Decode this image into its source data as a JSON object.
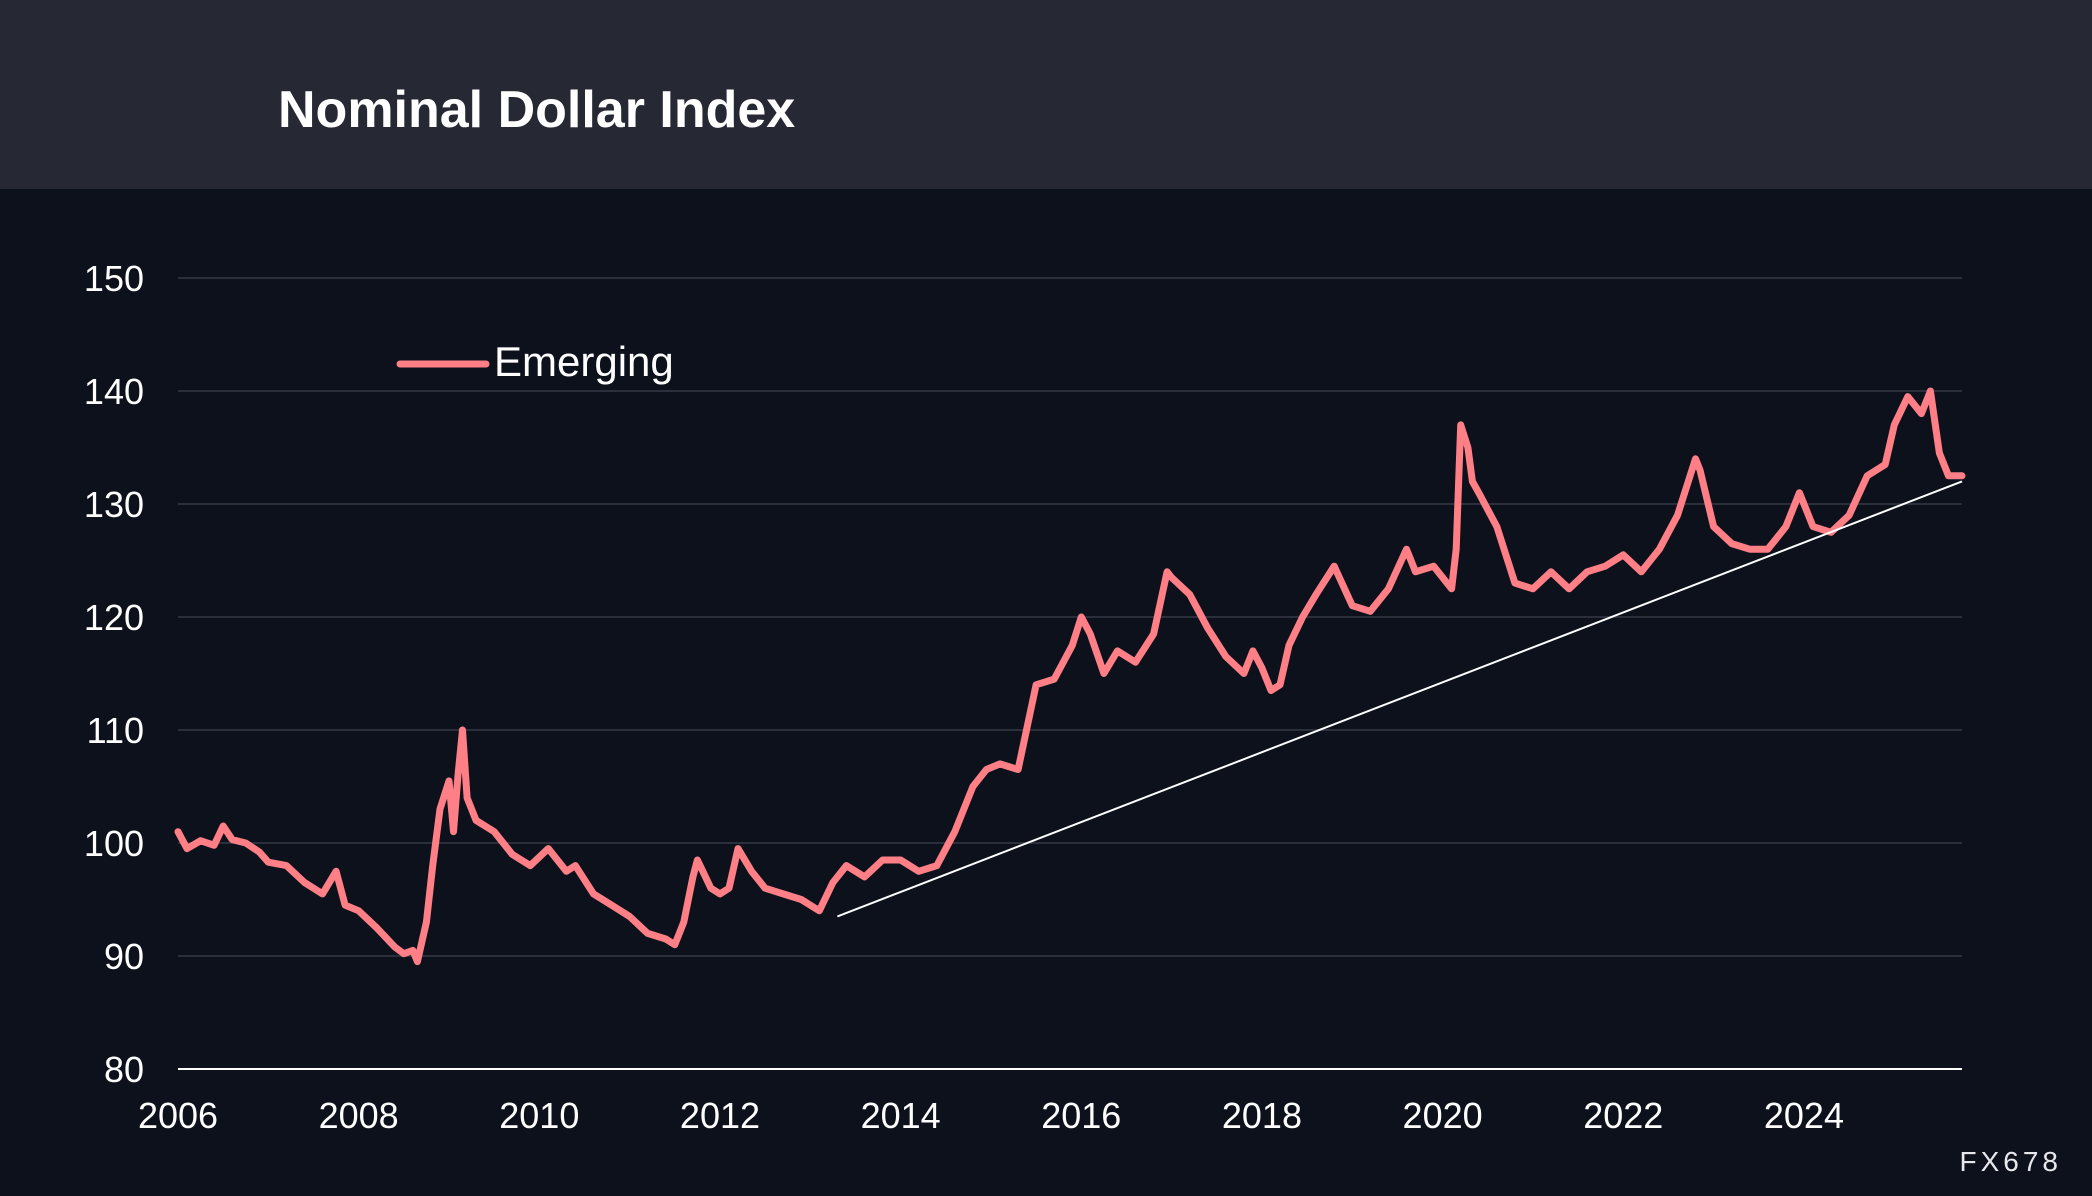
{
  "header": {
    "title": "Nominal Dollar Index"
  },
  "watermark": "FX678",
  "colors": {
    "background": "#0c111c",
    "header_background": "#262833",
    "series": "#ff7f86",
    "trendline": "#ffffff",
    "grid": "#2a2f3b",
    "text": "#ffffff"
  },
  "chart_data": {
    "type": "line",
    "title": "Nominal Dollar Index",
    "xlabel": "",
    "ylabel": "",
    "xlim": [
      2006,
      2025.75
    ],
    "ylim": [
      80,
      150
    ],
    "x_ticks": [
      "2006",
      "2008",
      "2010",
      "2012",
      "2014",
      "2016",
      "2018",
      "2020",
      "2022",
      "2024"
    ],
    "y_ticks": [
      "80",
      "90",
      "100",
      "110",
      "120",
      "130",
      "140",
      "150"
    ],
    "grid": true,
    "legend": {
      "position": "top-left",
      "entries": [
        "Emerging"
      ]
    },
    "series": [
      {
        "name": "Emerging",
        "x": [
          2006.0,
          2006.1,
          2006.25,
          2006.4,
          2006.5,
          2006.6,
          2006.75,
          2006.9,
          2007.0,
          2007.2,
          2007.4,
          2007.6,
          2007.75,
          2007.85,
          2008.0,
          2008.2,
          2008.4,
          2008.5,
          2008.6,
          2008.65,
          2008.75,
          2008.82,
          2008.9,
          2009.0,
          2009.05,
          2009.1,
          2009.15,
          2009.2,
          2009.3,
          2009.5,
          2009.7,
          2009.9,
          2010.1,
          2010.3,
          2010.4,
          2010.6,
          2010.8,
          2011.0,
          2011.2,
          2011.4,
          2011.5,
          2011.6,
          2011.7,
          2011.75,
          2011.9,
          2012.0,
          2012.1,
          2012.2,
          2012.35,
          2012.5,
          2012.7,
          2012.9,
          2013.1,
          2013.25,
          2013.4,
          2013.6,
          2013.8,
          2014.0,
          2014.2,
          2014.4,
          2014.6,
          2014.8,
          2014.95,
          2015.1,
          2015.3,
          2015.5,
          2015.7,
          2015.9,
          2016.0,
          2016.1,
          2016.25,
          2016.4,
          2016.6,
          2016.8,
          2016.95,
          2017.0,
          2017.2,
          2017.4,
          2017.6,
          2017.8,
          2017.9,
          2018.0,
          2018.1,
          2018.2,
          2018.3,
          2018.45,
          2018.6,
          2018.8,
          2019.0,
          2019.2,
          2019.4,
          2019.6,
          2019.7,
          2019.9,
          2020.1,
          2020.15,
          2020.2,
          2020.28,
          2020.33,
          2020.4,
          2020.6,
          2020.8,
          2021.0,
          2021.2,
          2021.4,
          2021.6,
          2021.8,
          2022.0,
          2022.2,
          2022.4,
          2022.6,
          2022.8,
          2022.85,
          2023.0,
          2023.2,
          2023.4,
          2023.6,
          2023.8,
          2023.95,
          2024.1,
          2024.3,
          2024.5,
          2024.7,
          2024.9,
          2025.0,
          2025.15,
          2025.3,
          2025.4,
          2025.5,
          2025.6,
          2025.75
        ],
        "values": [
          101.0,
          99.5,
          100.2,
          99.8,
          101.5,
          100.3,
          100.0,
          99.2,
          98.3,
          98.0,
          96.5,
          95.5,
          97.5,
          94.5,
          94.0,
          92.5,
          90.8,
          90.2,
          90.5,
          89.5,
          93.0,
          98.0,
          103.0,
          105.5,
          101.0,
          106.0,
          110.0,
          104.0,
          102.0,
          101.0,
          99.0,
          98.0,
          99.5,
          97.5,
          98.0,
          95.5,
          94.5,
          93.5,
          92.0,
          91.5,
          91.0,
          93.0,
          97.0,
          98.5,
          96.0,
          95.5,
          96.0,
          99.5,
          97.5,
          96.0,
          95.5,
          95.0,
          94.0,
          96.5,
          98.0,
          97.0,
          98.5,
          98.5,
          97.5,
          98.0,
          101.0,
          105.0,
          106.5,
          107.0,
          106.5,
          114.0,
          114.5,
          117.5,
          120.0,
          118.5,
          115.0,
          117.0,
          116.0,
          118.5,
          124.0,
          123.5,
          122.0,
          119.0,
          116.5,
          115.0,
          117.0,
          115.5,
          113.5,
          114.0,
          117.5,
          120.0,
          122.0,
          124.5,
          121.0,
          120.5,
          122.5,
          126.0,
          124.0,
          124.5,
          122.5,
          126.0,
          137.0,
          135.0,
          132.0,
          131.0,
          128.0,
          123.0,
          122.5,
          124.0,
          122.5,
          124.0,
          124.5,
          125.5,
          124.0,
          126.0,
          129.0,
          134.0,
          133.0,
          128.0,
          126.5,
          126.0,
          126.0,
          128.0,
          131.0,
          128.0,
          127.5,
          129.0,
          132.5,
          133.5,
          137.0,
          139.5,
          138.0,
          140.0,
          134.5,
          132.5,
          132.5
        ]
      },
      {
        "name": "Trend",
        "x": [
          2013.3,
          2025.75
        ],
        "values": [
          93.5,
          132.0
        ]
      }
    ]
  }
}
